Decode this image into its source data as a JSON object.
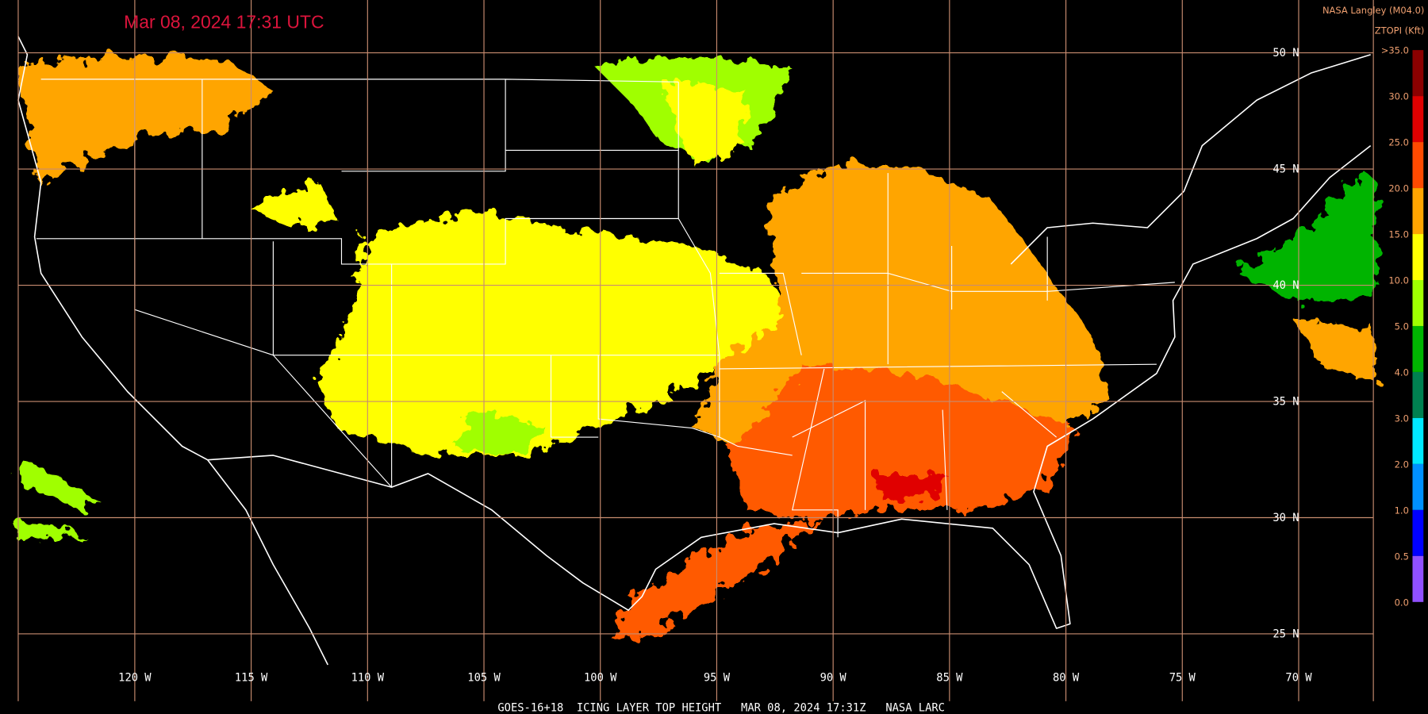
{
  "header": {
    "title": "Mar 08, 2024 17:31 UTC",
    "source": "NASA Langley (M04.0)",
    "product": "ZTOPI (Kft)"
  },
  "footer": "GOES-16+18  ICING LAYER TOP HEIGHT   MAR 08, 2024 17:31Z   NASA LARC",
  "longitude_labels": [
    "120 W",
    "115 W",
    "110 W",
    "105 W",
    "100 W",
    "95 W",
    "90 W",
    "85 W",
    "80 W",
    "75 W",
    "70 W"
  ],
  "latitude_labels": [
    "50 N",
    "45 N",
    "40 N",
    "35 N",
    "30 N",
    "25 N"
  ],
  "colorbar": {
    "labels": [
      ">35.0",
      "30.0",
      "25.0",
      "20.0",
      "15.0",
      "10.0",
      "5.0",
      "4.0",
      "3.0",
      "2.0",
      "1.0",
      "0.5",
      "0.0"
    ],
    "colors": [
      "#8b0000",
      "#e00000",
      "#ff4a00",
      "#ffa500",
      "#ffff00",
      "#a0ff00",
      "#00b400",
      "#008050",
      "#00e8ff",
      "#0090ff",
      "#0000ff",
      "#9050ff"
    ]
  }
}
